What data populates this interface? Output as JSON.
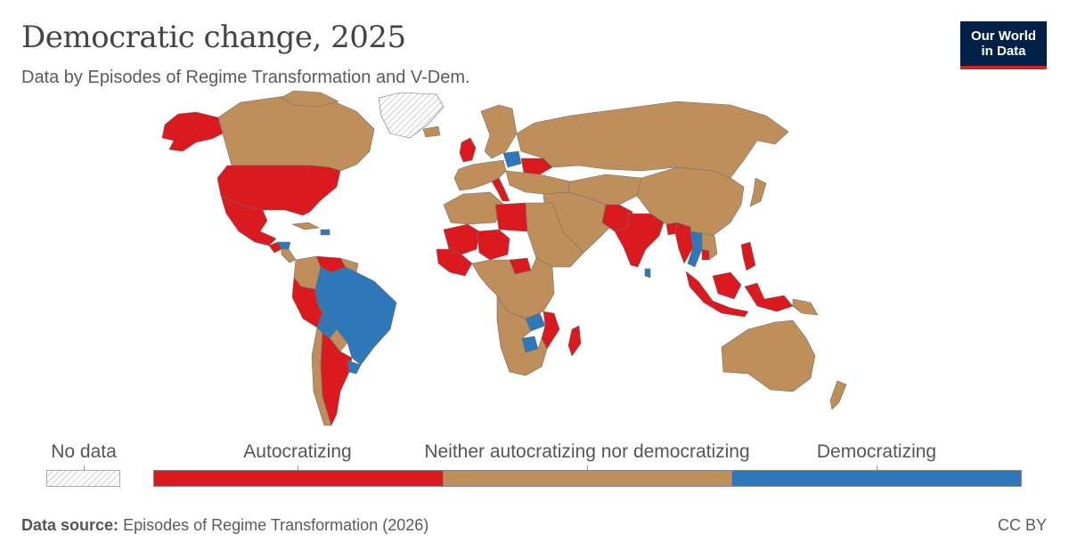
{
  "header": {
    "title": "Democratic change, 2025",
    "subtitle": "Data by Episodes of Regime Transformation and V-Dem."
  },
  "logo": {
    "line1": "Our World",
    "line2": "in Data"
  },
  "colors": {
    "autocratizing": "#da1a1f",
    "neither": "#bf8f5b",
    "democratizing": "#2e78b9",
    "border": "#6e6e6e",
    "no_data_hatch": "#cfcfcf"
  },
  "legend": {
    "no_data": "No data",
    "categories": [
      {
        "label": "Autocratizing",
        "color": "#da1a1f"
      },
      {
        "label": "Neither autocratizing nor democratizing",
        "color": "#bf8f5b"
      },
      {
        "label": "Democratizing",
        "color": "#2e78b9"
      }
    ]
  },
  "footer": {
    "source_label": "Data source:",
    "source_text": "Episodes of Regime Transformation (2026)",
    "license": "CC BY"
  },
  "map": {
    "regions": [
      {
        "region": "Alaska (United States)",
        "category": "Autocratizing"
      },
      {
        "region": "Canada",
        "category": "Neither autocratizing nor democratizing"
      },
      {
        "region": "Greenland",
        "category": "No data"
      },
      {
        "region": "United States",
        "category": "Autocratizing"
      },
      {
        "region": "Mexico",
        "category": "Autocratizing"
      },
      {
        "region": "Guatemala",
        "category": "Autocratizing"
      },
      {
        "region": "Honduras",
        "category": "Democratizing"
      },
      {
        "region": "Dominican Republic",
        "category": "Democratizing"
      },
      {
        "region": "Venezuela",
        "category": "Autocratizing"
      },
      {
        "region": "Colombia",
        "category": "Neither autocratizing nor democratizing"
      },
      {
        "region": "Peru",
        "category": "Autocratizing"
      },
      {
        "region": "Bolivia",
        "category": "Democratizing"
      },
      {
        "region": "Brazil",
        "category": "Democratizing"
      },
      {
        "region": "Argentina",
        "category": "Autocratizing"
      },
      {
        "region": "Chile",
        "category": "Neither autocratizing nor democratizing"
      },
      {
        "region": "Uruguay",
        "category": "Democratizing"
      },
      {
        "region": "United Kingdom",
        "category": "Autocratizing"
      },
      {
        "region": "Italy",
        "category": "Autocratizing"
      },
      {
        "region": "Poland",
        "category": "Democratizing"
      },
      {
        "region": "Ukraine",
        "category": "Autocratizing"
      },
      {
        "region": "Russia",
        "category": "Neither autocratizing nor democratizing"
      },
      {
        "region": "Libya",
        "category": "Autocratizing"
      },
      {
        "region": "Mali",
        "category": "Autocratizing"
      },
      {
        "region": "Niger",
        "category": "Autocratizing"
      },
      {
        "region": "Central African Republic",
        "category": "Autocratizing"
      },
      {
        "region": "Zambia",
        "category": "Democratizing"
      },
      {
        "region": "Botswana",
        "category": "Democratizing"
      },
      {
        "region": "Mozambique",
        "category": "Autocratizing"
      },
      {
        "region": "Madagascar",
        "category": "Autocratizing"
      },
      {
        "region": "Pakistan",
        "category": "Autocratizing"
      },
      {
        "region": "India",
        "category": "Autocratizing"
      },
      {
        "region": "Sri Lanka",
        "category": "Democratizing"
      },
      {
        "region": "Bangladesh",
        "category": "Autocratizing"
      },
      {
        "region": "Myanmar",
        "category": "Autocratizing"
      },
      {
        "region": "Thailand",
        "category": "Democratizing"
      },
      {
        "region": "Cambodia",
        "category": "Autocratizing"
      },
      {
        "region": "Philippines",
        "category": "Autocratizing"
      },
      {
        "region": "Indonesia",
        "category": "Autocratizing"
      },
      {
        "region": "China",
        "category": "Neither autocratizing nor democratizing"
      },
      {
        "region": "Australia",
        "category": "Neither autocratizing nor democratizing"
      }
    ]
  }
}
